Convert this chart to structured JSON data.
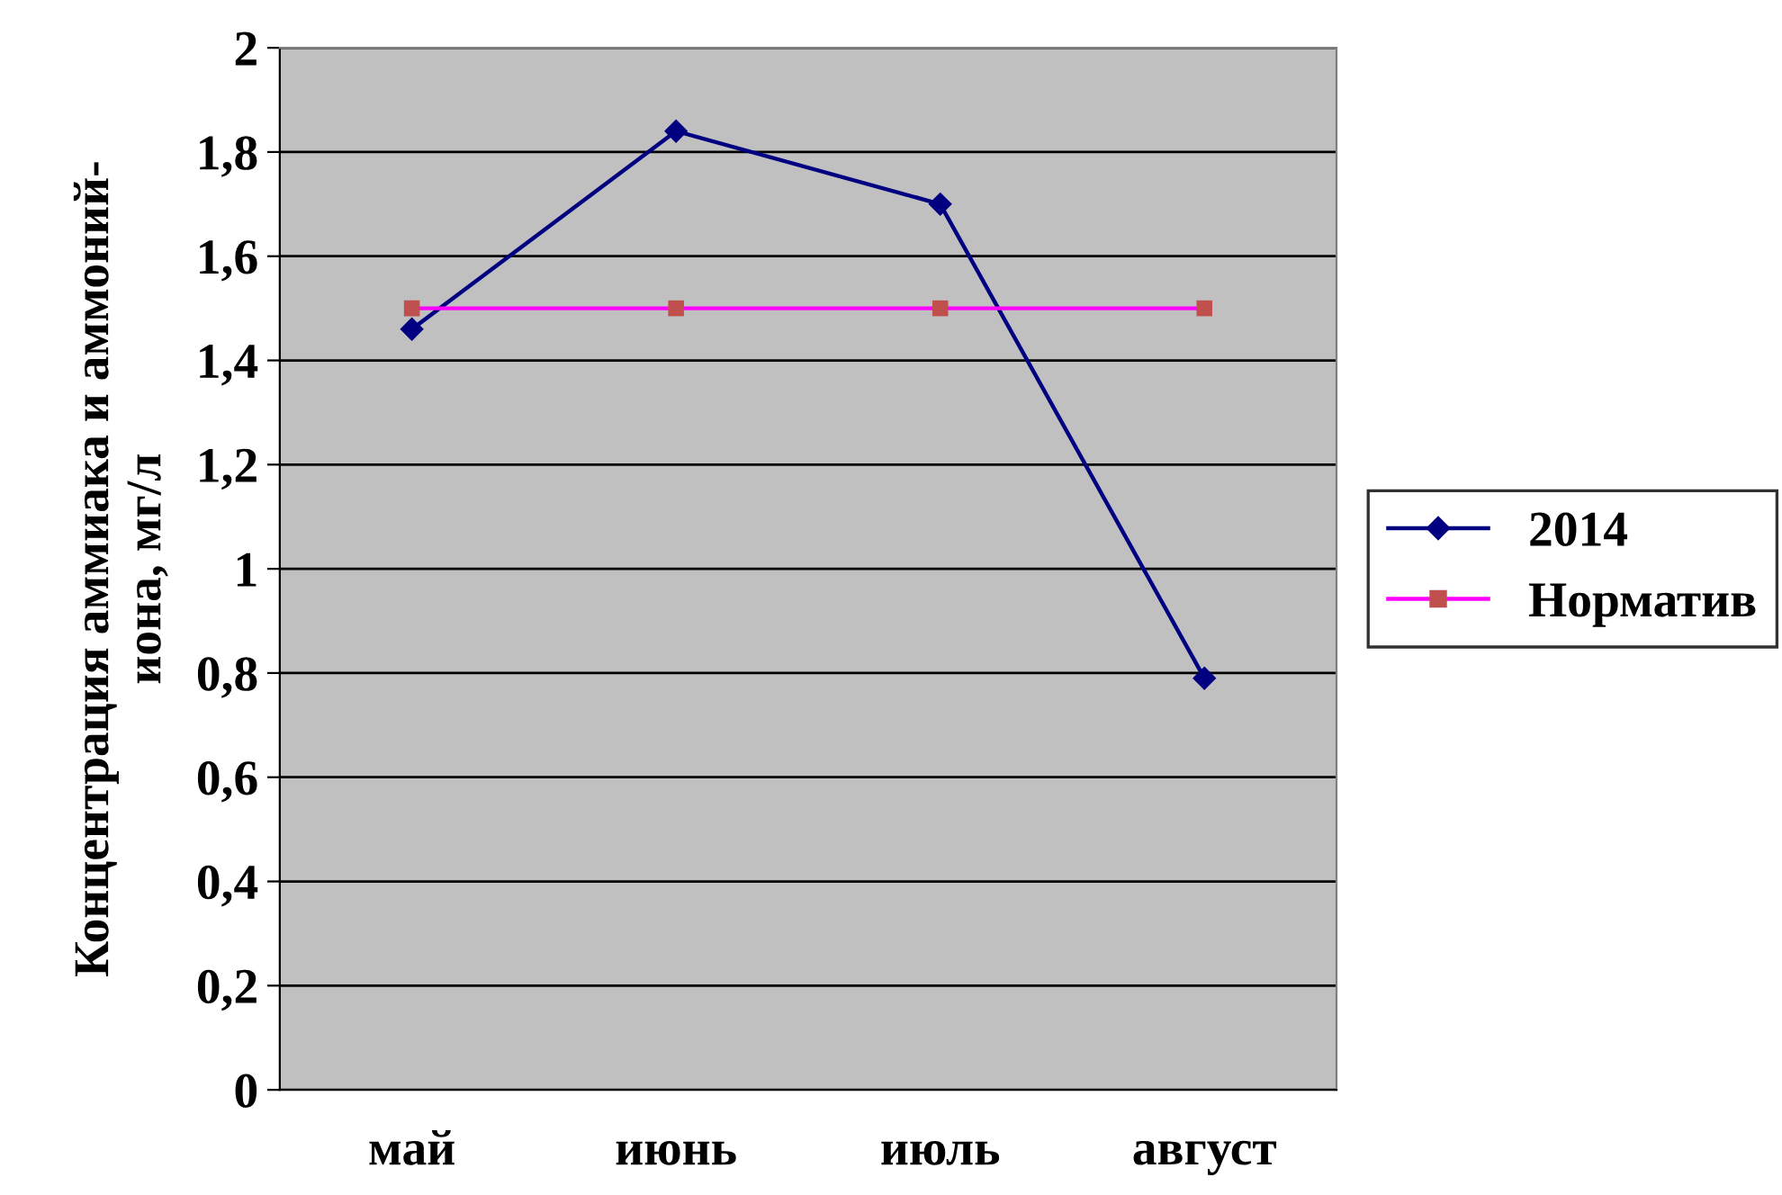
{
  "chart_data": {
    "type": "line",
    "ylabel": "Концентрация аммиака и аммоний-\nиона, мг/л",
    "categories": [
      "май",
      "июнь",
      "июль",
      "август"
    ],
    "series": [
      {
        "name": "2014",
        "color": "#000080",
        "marker": "diamond",
        "values": [
          1.46,
          1.84,
          1.7,
          0.79
        ]
      },
      {
        "name": "Норматив",
        "color": "#ff00ff",
        "colors": [
          "#c0504d",
          "#c0504d",
          "#c0504d",
          "#c0504d"
        ],
        "marker": "square",
        "values": [
          1.5,
          1.5,
          1.5,
          1.5
        ]
      }
    ],
    "ylim": [
      0,
      2
    ],
    "yticks": [
      0,
      {
        "value": 0.2,
        "label": "0,2"
      },
      {
        "value": 0.4,
        "label": "0,4"
      },
      {
        "value": 0.6,
        "label": "0,6"
      },
      {
        "value": 0.8,
        "label": "0,8"
      },
      1,
      {
        "value": 1.2,
        "label": "1,2"
      },
      {
        "value": 1.4,
        "label": "1,4"
      },
      {
        "value": 1.6,
        "label": "1,6"
      },
      {
        "value": 1.8,
        "label": "1,8"
      },
      2
    ],
    "grid": "y",
    "legend": "right"
  }
}
